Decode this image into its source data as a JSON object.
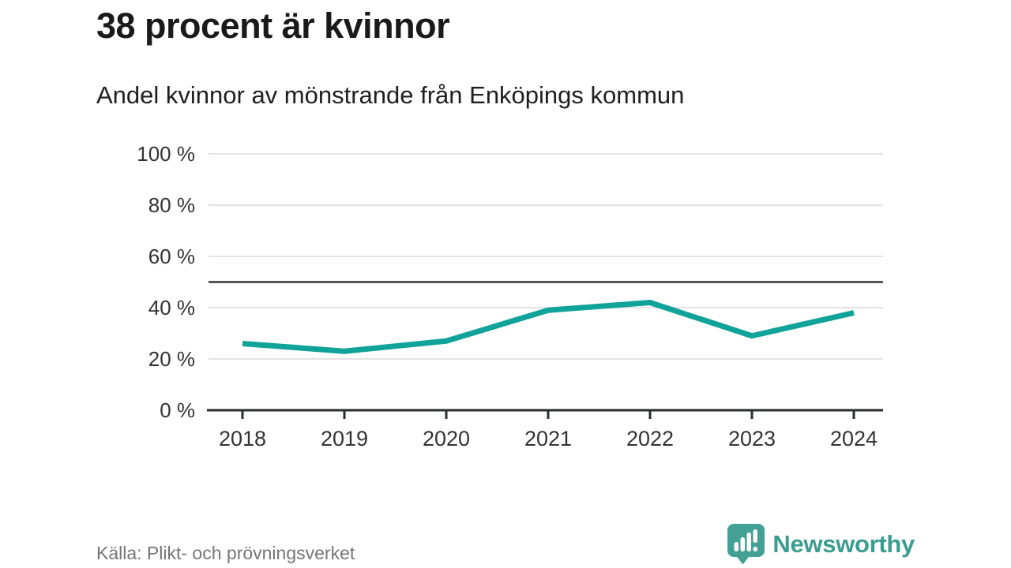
{
  "chart_data": {
    "type": "line",
    "title": "38 procent är kvinnor",
    "subtitle": "Andel kvinnor av mönstrande från Enköpings kommun",
    "categories": [
      "2018",
      "2019",
      "2020",
      "2021",
      "2022",
      "2023",
      "2024"
    ],
    "series": [
      {
        "name": "Andel kvinnor av mönstrande",
        "values": [
          26,
          23,
          27,
          39,
          42,
          29,
          38
        ]
      }
    ],
    "xlabel": "",
    "ylabel": "",
    "ylim": [
      0,
      100
    ],
    "yticks": [
      0,
      20,
      40,
      60,
      80,
      100
    ],
    "ytick_labels": [
      "0 %",
      "20 %",
      "40 %",
      "60 %",
      "80 %",
      "100 %"
    ],
    "reference_line": {
      "value": 50,
      "color": "#55565c"
    },
    "grid": true,
    "legend": "none",
    "line_color": "#10a39a",
    "gridline_color": "#e3e3e3",
    "axis_color": "#2b2c2e"
  },
  "footer": {
    "source": "Källa: Plikt- och prövningsverket",
    "brand": "Newsworthy",
    "brand_color": "#3b9c90",
    "logo_icon": "bar-chart-speech-bubble-icon"
  }
}
